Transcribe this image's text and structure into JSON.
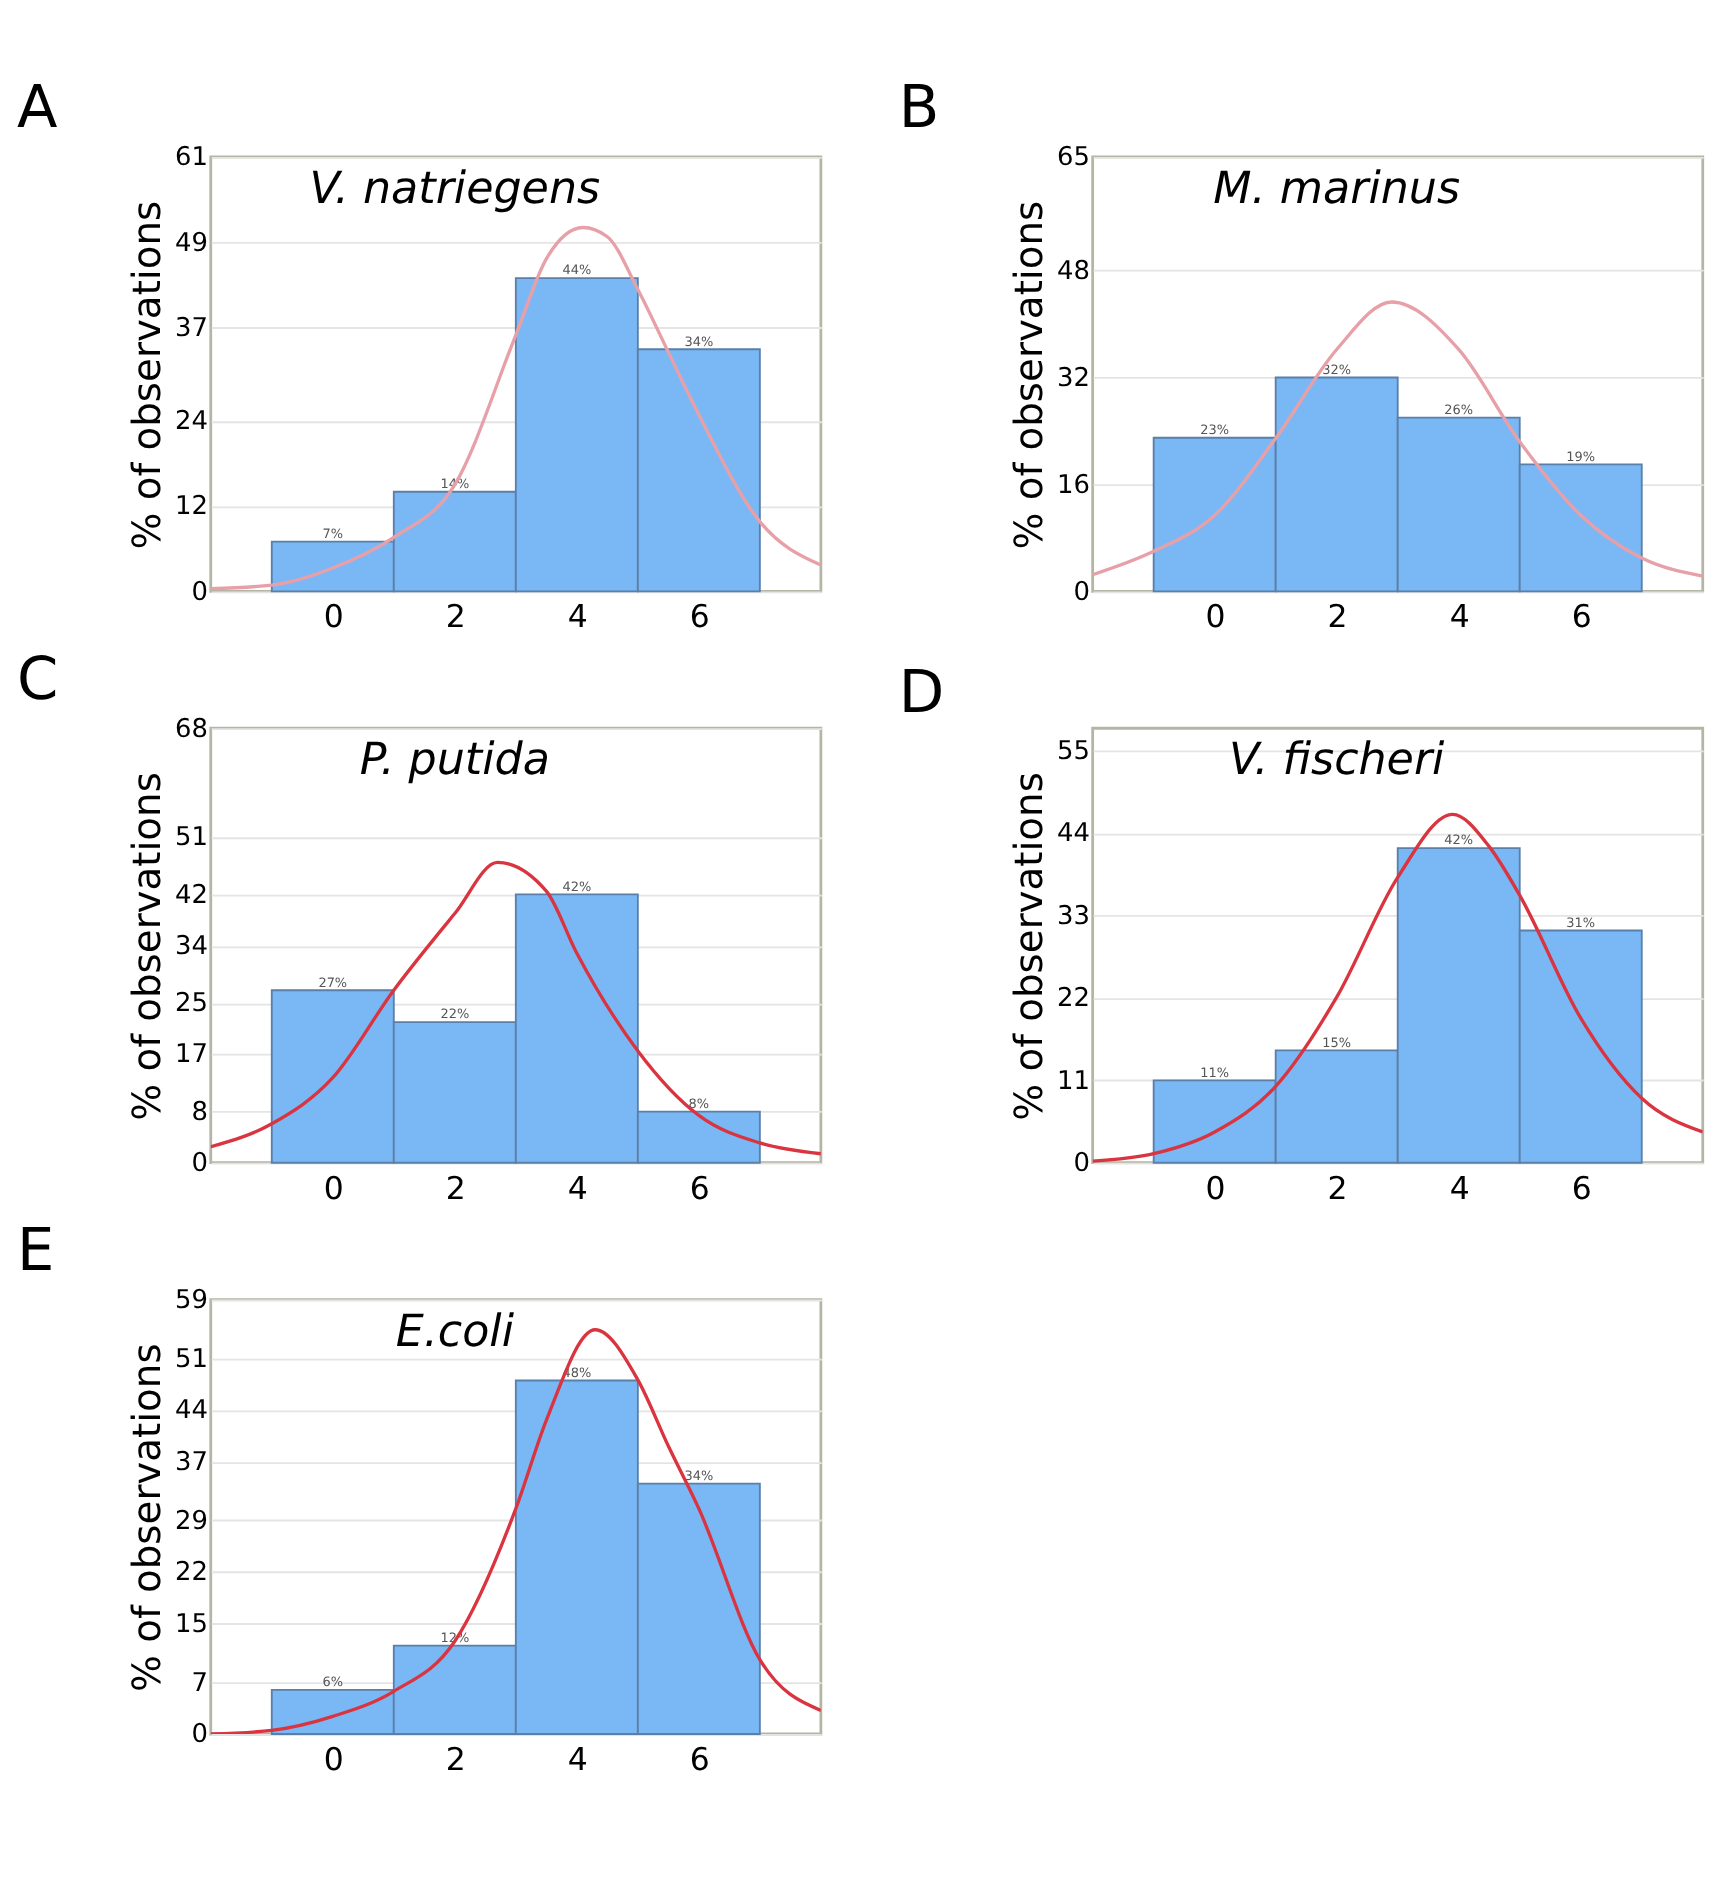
{
  "chart_data": [
    {
      "type": "histogram",
      "title": "A",
      "annotations": [
        "V. natriegens"
      ],
      "ylabel": "% of observations",
      "bins": [
        -1,
        1,
        3,
        5,
        7
      ],
      "values": [
        7,
        14,
        44,
        34
      ],
      "value_labels": [
        "7%",
        "14%",
        "44%",
        "34%"
      ],
      "color": "#7ab8f5",
      "xlim": [
        -2,
        8
      ],
      "xticks": [
        0,
        2,
        4,
        6
      ],
      "ylim": [
        0,
        61
      ],
      "yticks": [
        0,
        12,
        24,
        37,
        49,
        61
      ],
      "grid": "y",
      "series": [
        {
          "type": "line",
          "color": "#e8a0a8",
          "x": [
            -2,
            -1,
            0,
            1,
            2,
            3,
            3.5,
            4.1,
            4.5,
            5,
            5.5,
            6,
            7,
            8
          ],
          "values": [
            0.4,
            0.9,
            3.3,
            7.6,
            15,
            36,
            46.7,
            51.1,
            49.8,
            42.4,
            33.6,
            24.8,
            9.8,
            3.7
          ]
        }
      ]
    },
    {
      "type": "histogram",
      "title": "B",
      "annotations": [
        "M. marinus"
      ],
      "ylabel": "% of observations",
      "bins": [
        -1,
        1,
        3,
        5,
        7
      ],
      "values": [
        23,
        32,
        26,
        19
      ],
      "value_labels": [
        "23%",
        "32%",
        "26%",
        "19%"
      ],
      "color": "#7ab8f5",
      "xlim": [
        -2,
        8
      ],
      "xticks": [
        0,
        2,
        4,
        6
      ],
      "ylim": [
        0,
        65
      ],
      "yticks": [
        0,
        16,
        32,
        48,
        65
      ],
      "grid": "y",
      "series": [
        {
          "type": "line",
          "color": "#e8a0a8",
          "x": [
            -2,
            -1,
            0,
            1,
            2,
            2.9,
            4,
            5,
            6,
            7,
            8
          ],
          "values": [
            2.5,
            6,
            11.4,
            22.9,
            36.2,
            43.3,
            36.2,
            22.4,
            11.4,
            5,
            2.3
          ]
        }
      ]
    },
    {
      "type": "histogram",
      "title": "C",
      "annotations": [
        "P. putida"
      ],
      "ylabel": "% of observations",
      "bins": [
        -1,
        1,
        3,
        5,
        7
      ],
      "values": [
        27,
        22,
        42,
        8
      ],
      "value_labels": [
        "27%",
        "22%",
        "42%",
        "8%"
      ],
      "color": "#7ab8f5",
      "xlim": [
        -2,
        8
      ],
      "xticks": [
        0,
        2,
        4,
        6
      ],
      "ylim": [
        0,
        68
      ],
      "yticks": [
        0,
        8,
        17,
        25,
        34,
        42,
        51,
        68
      ],
      "grid": "y",
      "series": [
        {
          "type": "line",
          "color": "#d9343f",
          "x": [
            -2,
            -1,
            0,
            1,
            2,
            2.7,
            3.5,
            4,
            5,
            6,
            7,
            8
          ],
          "values": [
            2.5,
            6.1,
            13.3,
            27,
            39,
            47,
            42.5,
            32.8,
            17.5,
            7.4,
            3.1,
            1.4
          ]
        }
      ]
    },
    {
      "type": "histogram",
      "title": "D",
      "annotations": [
        "V. fischeri"
      ],
      "ylabel": "% of observations",
      "bins": [
        -1,
        1,
        3,
        5,
        7
      ],
      "values": [
        11,
        15,
        42,
        31
      ],
      "value_labels": [
        "11%",
        "15%",
        "42%",
        "31%"
      ],
      "color": "#7ab8f5",
      "xlim": [
        -2,
        8
      ],
      "xticks": [
        0,
        2,
        4,
        6
      ],
      "ylim": [
        0,
        58
      ],
      "yticks": [
        0,
        11,
        22,
        33,
        44,
        55
      ],
      "grid": "y",
      "series": [
        {
          "type": "line",
          "color": "#d9343f",
          "x": [
            -2,
            -1,
            0,
            1,
            2,
            3,
            3.9,
            4.5,
            5,
            6,
            7,
            8
          ],
          "values": [
            0.2,
            1.2,
            4.1,
            10.2,
            22.1,
            38.1,
            46.5,
            42.2,
            35.7,
            19.3,
            8.6,
            4.1
          ]
        }
      ]
    },
    {
      "type": "histogram",
      "title": "E",
      "annotations": [
        "E.coli"
      ],
      "ylabel": "% of observations",
      "bins": [
        -1,
        1,
        3,
        5,
        7
      ],
      "values": [
        6,
        12,
        48,
        34
      ],
      "value_labels": [
        "6%",
        "12%",
        "48%",
        "34%"
      ],
      "color": "#7ab8f5",
      "xlim": [
        -2,
        8
      ],
      "xticks": [
        0,
        2,
        4,
        6
      ],
      "ylim": [
        0,
        59
      ],
      "yticks": [
        0,
        7,
        15,
        22,
        29,
        37,
        44,
        51,
        59
      ],
      "grid": "y",
      "series": [
        {
          "type": "line",
          "color": "#d9343f",
          "x": [
            -2,
            -1,
            0,
            1,
            2,
            3,
            3.5,
            4.3,
            5,
            5.5,
            6,
            7,
            8
          ],
          "values": [
            0,
            0.5,
            2.4,
            5.8,
            12.6,
            30.6,
            42.6,
            54.9,
            48.1,
            39.1,
            30.6,
            10.1,
            3.2
          ]
        }
      ]
    }
  ]
}
